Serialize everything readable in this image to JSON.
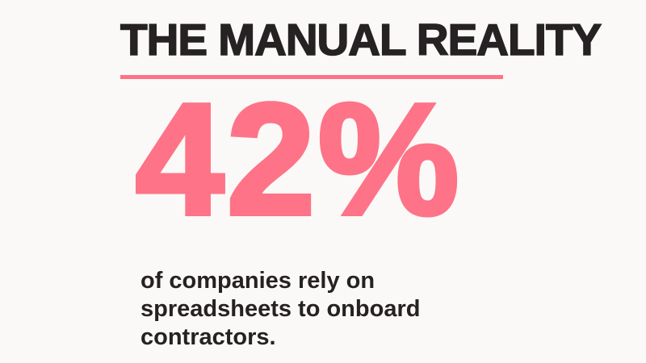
{
  "slide": {
    "title": "THE MANUAL REALITY",
    "stat_value": "42%",
    "description": "of companies rely on spreadsheets to onboard contractors."
  },
  "colors": {
    "accent": "#fe7387",
    "text": "#262122",
    "background": "#faf9f7"
  }
}
